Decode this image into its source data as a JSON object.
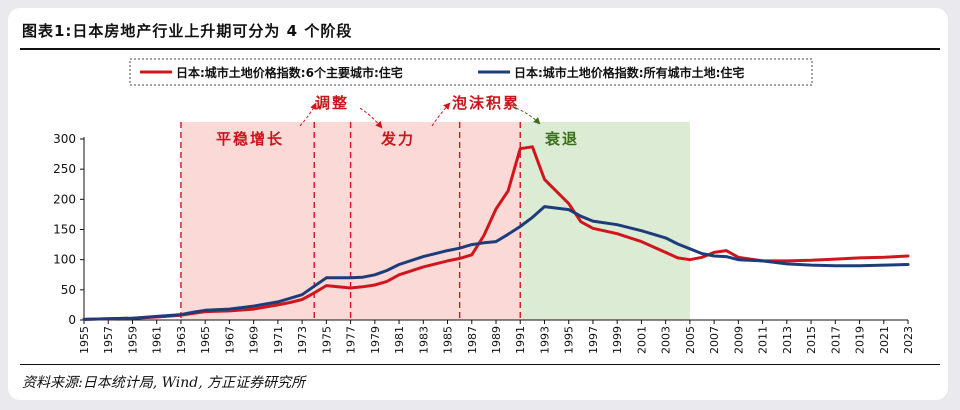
{
  "header": {
    "title": "图表1:日本房地产行业上升期可分为 4 个阶段"
  },
  "footer": {
    "source": "资料来源:日本统计局, Wind, 方正证券研究所"
  },
  "chart_data": {
    "type": "line",
    "title": "图表1:日本房地产行业上升期可分为 4 个阶段",
    "xlabel": "",
    "ylabel": "",
    "xlim": [
      1955,
      2023
    ],
    "ylim": [
      0,
      300
    ],
    "yticks": [
      0,
      50,
      100,
      150,
      200,
      250,
      300
    ],
    "xticks": [
      1955,
      1957,
      1959,
      1961,
      1963,
      1965,
      1967,
      1969,
      1971,
      1973,
      1975,
      1977,
      1979,
      1981,
      1983,
      1985,
      1987,
      1989,
      1991,
      1993,
      1995,
      1997,
      1999,
      2001,
      2003,
      2005,
      2007,
      2009,
      2011,
      2013,
      2015,
      2017,
      2019,
      2021,
      2023
    ],
    "grid": false,
    "legend_position": "top",
    "series": [
      {
        "name": "日本:城市土地价格指数:6个主要城市:住宅",
        "color": "#d0161c",
        "x": [
          1955,
          1957,
          1959,
          1961,
          1963,
          1964,
          1965,
          1967,
          1969,
          1971,
          1972,
          1973,
          1974,
          1975,
          1977,
          1978,
          1979,
          1980,
          1981,
          1983,
          1985,
          1986,
          1987,
          1988,
          1989,
          1990,
          1991,
          1992,
          1993,
          1995,
          1996,
          1997,
          1999,
          2001,
          2003,
          2004,
          2005,
          2006,
          2007,
          2008,
          2009,
          2011,
          2013,
          2015,
          2017,
          2019,
          2021,
          2023
        ],
        "values": [
          1,
          2,
          3,
          5,
          8,
          11,
          14,
          15,
          18,
          25,
          29,
          34,
          45,
          57,
          53,
          55,
          58,
          64,
          75,
          88,
          98,
          102,
          108,
          140,
          184,
          214,
          284,
          287,
          233,
          193,
          163,
          152,
          143,
          130,
          112,
          103,
          100,
          104,
          112,
          115,
          104,
          98,
          98,
          99,
          101,
          103,
          104,
          106
        ]
      },
      {
        "name": "日本:城市土地价格指数:所有城市土地:住宅",
        "color": "#1f3c7a",
        "x": [
          1955,
          1957,
          1959,
          1961,
          1963,
          1964,
          1965,
          1967,
          1969,
          1971,
          1972,
          1973,
          1974,
          1975,
          1977,
          1978,
          1979,
          1980,
          1981,
          1983,
          1985,
          1986,
          1987,
          1988,
          1989,
          1990,
          1991,
          1992,
          1993,
          1995,
          1996,
          1997,
          1999,
          2001,
          2003,
          2004,
          2005,
          2006,
          2007,
          2008,
          2009,
          2011,
          2013,
          2015,
          2017,
          2019,
          2021,
          2023
        ],
        "values": [
          1,
          2,
          3,
          6,
          9,
          13,
          16,
          18,
          23,
          30,
          36,
          42,
          56,
          70,
          70,
          71,
          75,
          82,
          92,
          105,
          115,
          119,
          125,
          128,
          130,
          142,
          155,
          170,
          188,
          183,
          172,
          164,
          158,
          148,
          136,
          126,
          118,
          110,
          106,
          105,
          100,
          98,
          93,
          91,
          90,
          90,
          91,
          92
        ]
      }
    ],
    "phases": [
      {
        "label": "平稳增长",
        "label_color": "#c8161c",
        "from": 1963,
        "to": 1974,
        "fill": "#fad9d7"
      },
      {
        "label": "调整",
        "label_color": "#c8161c",
        "from": 1974,
        "to": 1977,
        "fill": "#fad9d7"
      },
      {
        "label": "发力",
        "label_color": "#c8161c",
        "from": 1977,
        "to": 1986,
        "fill": "#fad9d7"
      },
      {
        "label": "泡沫积累",
        "label_color": "#c8161c",
        "from": 1986,
        "to": 1991,
        "fill": "#fad9d7"
      },
      {
        "label": "衰退",
        "label_color": "#3b6e1a",
        "from": 1991,
        "to": 2005,
        "fill": "#dcecd4"
      }
    ],
    "dividers": [
      1963,
      1974,
      1977,
      1986,
      1991
    ]
  }
}
